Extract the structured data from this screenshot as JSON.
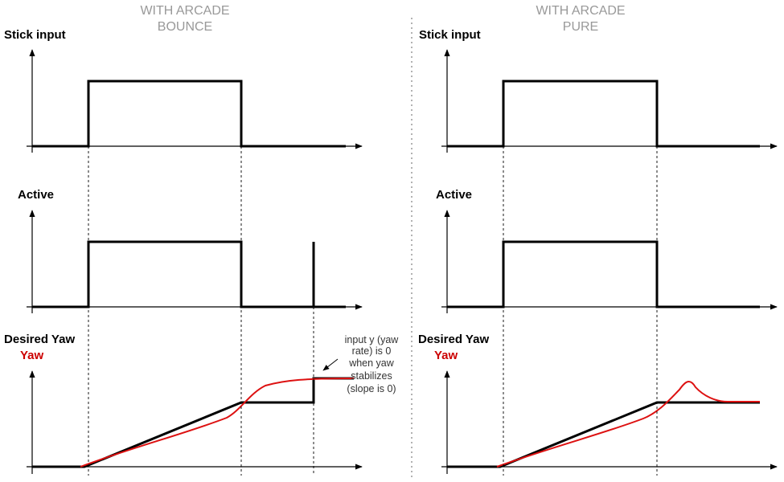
{
  "panels": {
    "left": {
      "title_line1": "WITH ARCADE",
      "title_line2": "BOUNCE",
      "stick_label": "Stick input",
      "active_label": "Active",
      "desired_label": "Desired Yaw",
      "yaw_label": "Yaw",
      "annotation": [
        "input y (yaw",
        "rate) is 0",
        "when yaw",
        "stabilizes",
        "(slope is 0)"
      ]
    },
    "right": {
      "title_line1": "WITH ARCADE",
      "title_line2": "PURE",
      "stick_label": "Stick input",
      "active_label": "Active",
      "desired_label": "Desired Yaw",
      "yaw_label": "Yaw"
    }
  },
  "colors": {
    "signal": "#000000",
    "yaw": "#dd1111",
    "yaw_label": "#cc0000",
    "title": "#999999",
    "divider": "#999999"
  }
}
